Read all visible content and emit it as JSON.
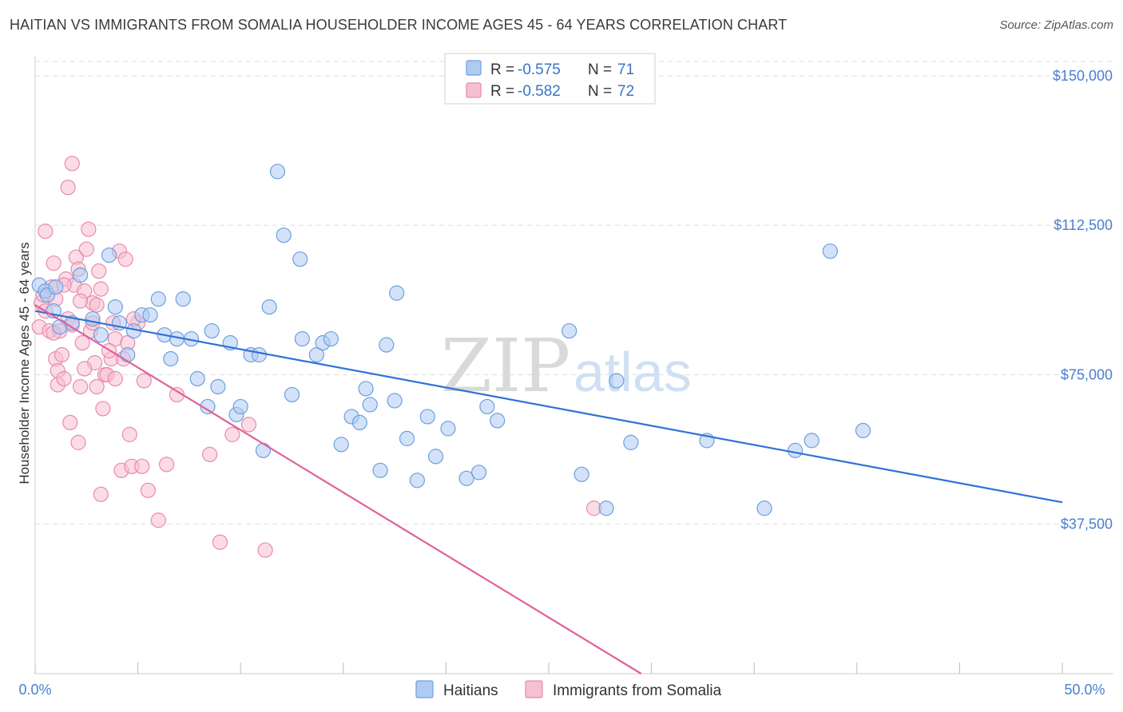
{
  "header": {
    "title": "HAITIAN VS IMMIGRANTS FROM SOMALIA HOUSEHOLDER INCOME AGES 45 - 64 YEARS CORRELATION CHART",
    "source": "Source: ZipAtlas.com"
  },
  "watermark": {
    "part1": "ZIP",
    "part2": "atlas"
  },
  "legend": {
    "r_label": "R =",
    "n_label": "N =",
    "rows": [
      {
        "r": "-0.575",
        "n": "71"
      },
      {
        "r": "-0.582",
        "n": "72"
      }
    ]
  },
  "bottom_legend": {
    "series1": "Haitians",
    "series2": "Immigrants from Somalia"
  },
  "colors": {
    "haitians_fill": "#aecbf2",
    "haitians_stroke": "#6d9fe0",
    "haitians_line": "#2f72d6",
    "somalia_fill": "#f7bfd2",
    "somalia_stroke": "#e98aaa",
    "somalia_line": "#e0609a",
    "grid": "#dddddd",
    "tick_text": "#4a7fcf"
  },
  "chart_data": {
    "type": "scatter",
    "title": "HAITIAN VS IMMIGRANTS FROM SOMALIA HOUSEHOLDER INCOME AGES 45 - 64 YEARS CORRELATION CHART",
    "xlabel": "",
    "ylabel": "Householder Income Ages 45 - 64 years",
    "xlim": [
      0,
      50
    ],
    "ylim": [
      0,
      155000
    ],
    "x_tick_labels": [
      "0.0%",
      "50.0%"
    ],
    "y_ticks": [
      37500,
      75000,
      112500,
      150000
    ],
    "y_tick_labels": [
      "$37,500",
      "$75,000",
      "$112,500",
      "$150,000"
    ],
    "grid": true,
    "legend_position": "top-center",
    "series": [
      {
        "name": "Haitians",
        "r": -0.575,
        "n": 71,
        "trend": {
          "x1": 0,
          "y1": 91000,
          "x2": 50,
          "y2": 43000
        },
        "points": [
          [
            0.2,
            97500
          ],
          [
            0.5,
            96000
          ],
          [
            0.6,
            95000
          ],
          [
            0.9,
            91000
          ],
          [
            1.0,
            97000
          ],
          [
            1.2,
            87000
          ],
          [
            2.2,
            100000
          ],
          [
            1.8,
            88000
          ],
          [
            2.8,
            89000
          ],
          [
            3.2,
            85000
          ],
          [
            3.6,
            105000
          ],
          [
            3.9,
            92000
          ],
          [
            4.1,
            88000
          ],
          [
            4.5,
            80000
          ],
          [
            4.8,
            86000
          ],
          [
            5.2,
            90000
          ],
          [
            5.6,
            90000
          ],
          [
            6.0,
            94000
          ],
          [
            6.3,
            85000
          ],
          [
            6.6,
            79000
          ],
          [
            6.9,
            84000
          ],
          [
            7.2,
            94000
          ],
          [
            7.6,
            84000
          ],
          [
            7.9,
            74000
          ],
          [
            8.4,
            67000
          ],
          [
            8.6,
            86000
          ],
          [
            8.9,
            72000
          ],
          [
            9.5,
            83000
          ],
          [
            9.8,
            65000
          ],
          [
            10.0,
            67000
          ],
          [
            10.5,
            80000
          ],
          [
            10.9,
            80000
          ],
          [
            11.1,
            56000
          ],
          [
            11.4,
            92000
          ],
          [
            11.8,
            126000
          ],
          [
            12.1,
            110000
          ],
          [
            12.5,
            70000
          ],
          [
            12.9,
            104000
          ],
          [
            13.0,
            84000
          ],
          [
            13.7,
            80000
          ],
          [
            14.0,
            83000
          ],
          [
            14.4,
            84000
          ],
          [
            14.9,
            57500
          ],
          [
            15.4,
            64500
          ],
          [
            15.8,
            63000
          ],
          [
            16.1,
            71500
          ],
          [
            16.3,
            67500
          ],
          [
            16.8,
            51000
          ],
          [
            17.1,
            82500
          ],
          [
            17.5,
            68500
          ],
          [
            17.6,
            95500
          ],
          [
            18.1,
            59000
          ],
          [
            18.6,
            48500
          ],
          [
            19.1,
            64500
          ],
          [
            19.5,
            54500
          ],
          [
            20.1,
            61500
          ],
          [
            21.0,
            49000
          ],
          [
            21.6,
            50500
          ],
          [
            22.0,
            67000
          ],
          [
            22.5,
            63500
          ],
          [
            26.0,
            86000
          ],
          [
            26.6,
            50000
          ],
          [
            27.8,
            41500
          ],
          [
            28.3,
            73500
          ],
          [
            29.0,
            58000
          ],
          [
            32.7,
            58500
          ],
          [
            35.5,
            41500
          ],
          [
            37.0,
            56000
          ],
          [
            37.8,
            58500
          ],
          [
            38.7,
            106000
          ],
          [
            40.3,
            61000
          ]
        ]
      },
      {
        "name": "Immigrants from Somalia",
        "r": -0.582,
        "n": 72,
        "trend": {
          "x1": 0,
          "y1": 92500,
          "x2": 29.5,
          "y2": 0
        },
        "points": [
          [
            0.2,
            87000
          ],
          [
            0.3,
            93000
          ],
          [
            0.4,
            95000
          ],
          [
            0.5,
            91000
          ],
          [
            0.5,
            111000
          ],
          [
            0.7,
            86000
          ],
          [
            0.8,
            97000
          ],
          [
            0.9,
            103000
          ],
          [
            1.0,
            79000
          ],
          [
            1.0,
            94000
          ],
          [
            1.1,
            76000
          ],
          [
            1.1,
            72500
          ],
          [
            1.2,
            86000
          ],
          [
            1.3,
            80000
          ],
          [
            1.4,
            74000
          ],
          [
            1.5,
            99000
          ],
          [
            1.6,
            89000
          ],
          [
            1.6,
            122000
          ],
          [
            1.7,
            63000
          ],
          [
            1.8,
            128000
          ],
          [
            1.8,
            87500
          ],
          [
            1.9,
            97500
          ],
          [
            2.0,
            104500
          ],
          [
            2.1,
            58000
          ],
          [
            2.1,
            101500
          ],
          [
            2.2,
            72000
          ],
          [
            2.3,
            83000
          ],
          [
            2.4,
            96000
          ],
          [
            2.5,
            106500
          ],
          [
            2.6,
            111500
          ],
          [
            2.7,
            86000
          ],
          [
            2.8,
            88000
          ],
          [
            2.8,
            93000
          ],
          [
            2.9,
            78000
          ],
          [
            3.0,
            92500
          ],
          [
            3.1,
            101000
          ],
          [
            3.2,
            45000
          ],
          [
            3.2,
            96500
          ],
          [
            3.3,
            66500
          ],
          [
            3.4,
            75000
          ],
          [
            3.5,
            75000
          ],
          [
            3.7,
            79000
          ],
          [
            3.8,
            88000
          ],
          [
            3.9,
            74000
          ],
          [
            3.9,
            84000
          ],
          [
            4.1,
            106000
          ],
          [
            4.2,
            51000
          ],
          [
            4.3,
            79000
          ],
          [
            4.4,
            104000
          ],
          [
            4.5,
            83000
          ],
          [
            4.6,
            60000
          ],
          [
            4.7,
            52000
          ],
          [
            5.0,
            88000
          ],
          [
            5.2,
            52000
          ],
          [
            5.3,
            73500
          ],
          [
            5.5,
            46000
          ],
          [
            6.0,
            38500
          ],
          [
            6.4,
            52500
          ],
          [
            6.9,
            70000
          ],
          [
            8.5,
            55000
          ],
          [
            9.0,
            33000
          ],
          [
            9.6,
            60000
          ],
          [
            10.4,
            62500
          ],
          [
            11.2,
            31000
          ],
          [
            27.2,
            41500
          ],
          [
            3.6,
            81000
          ],
          [
            2.2,
            93500
          ],
          [
            1.4,
            97500
          ],
          [
            0.9,
            85500
          ],
          [
            3.0,
            72000
          ],
          [
            2.4,
            76500
          ],
          [
            4.8,
            89000
          ]
        ]
      }
    ]
  }
}
